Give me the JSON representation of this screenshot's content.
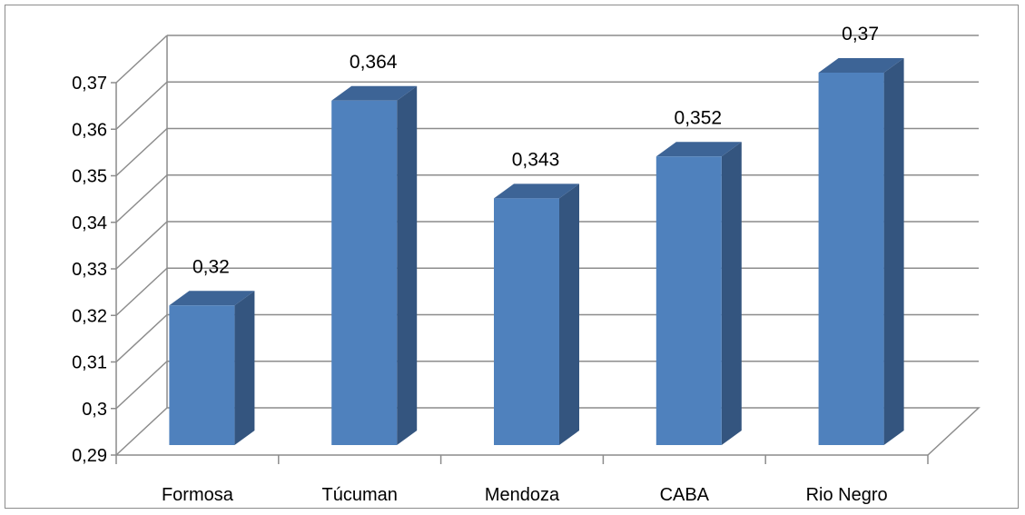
{
  "chart_data": {
    "type": "bar",
    "categories": [
      "Formosa",
      "Túcuman",
      "Mendoza",
      "CABA",
      "Rio Negro"
    ],
    "values": [
      0.32,
      0.364,
      0.343,
      0.352,
      0.37
    ],
    "data_labels": [
      "0,32",
      "0,364",
      "0,343",
      "0,352",
      "0,37"
    ],
    "yticks": [
      0.29,
      0.3,
      0.31,
      0.32,
      0.33,
      0.34,
      0.35,
      0.36,
      0.37
    ],
    "ytick_labels": [
      "0,29",
      "0,3",
      "0,31",
      "0,32",
      "0,33",
      "0,34",
      "0,35",
      "0,36",
      "0,37"
    ],
    "ylim": [
      0.29,
      0.37
    ],
    "grid": true,
    "legend": "none",
    "style": "3d-column",
    "colors": {
      "bar_front": "#4f81bd",
      "bar_side": "#34557f",
      "bar_top": "#3d6496",
      "grid": "#8c8c8c"
    }
  }
}
